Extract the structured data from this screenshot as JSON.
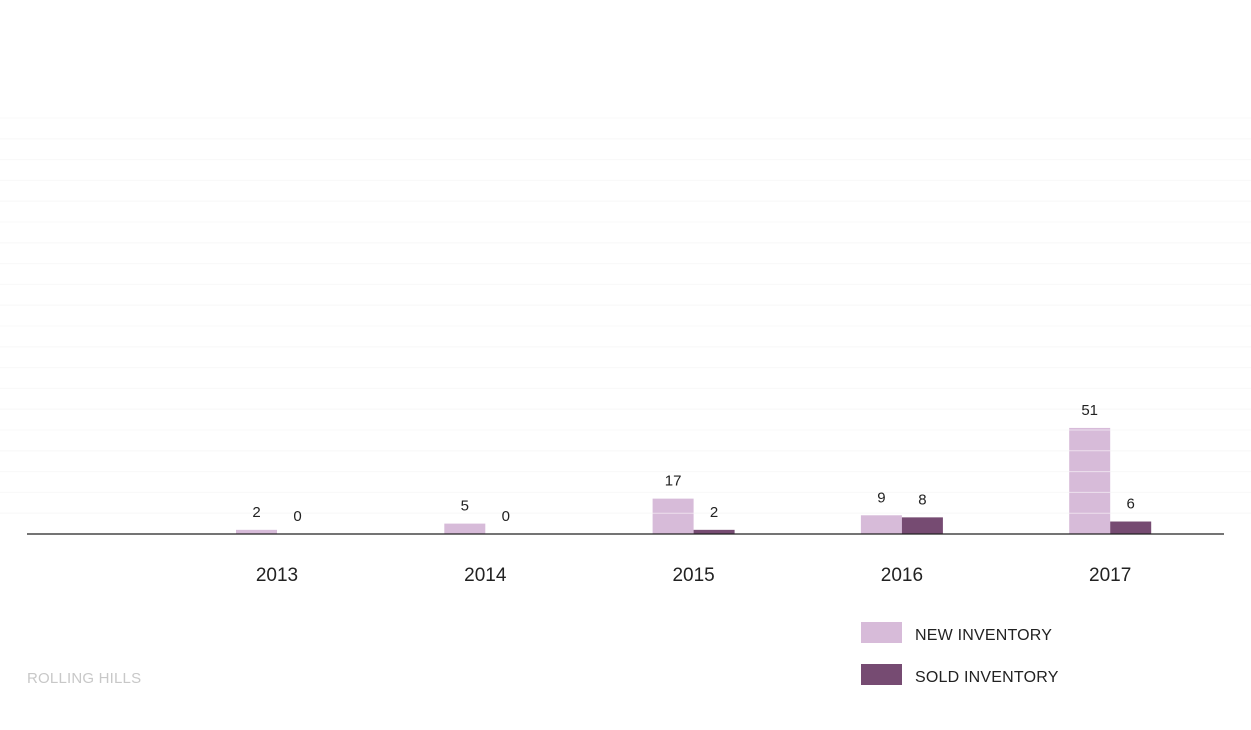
{
  "chart_data": {
    "type": "bar",
    "categories": [
      "2013",
      "2014",
      "2015",
      "2016",
      "2017"
    ],
    "series": [
      {
        "name": "NEW INVENTORY",
        "values": [
          2,
          5,
          17,
          9,
          51
        ],
        "color": "#d7bbd9"
      },
      {
        "name": "SOLD INVENTORY",
        "values": [
          0,
          0,
          2,
          8,
          6
        ],
        "color": "#764b72"
      }
    ],
    "ylim": [
      0,
      200
    ],
    "grid_step": 10,
    "grid": true,
    "legend_position": "bottom-right",
    "data_labels": true
  },
  "footer": {
    "label": "ROLLING HILLS"
  }
}
